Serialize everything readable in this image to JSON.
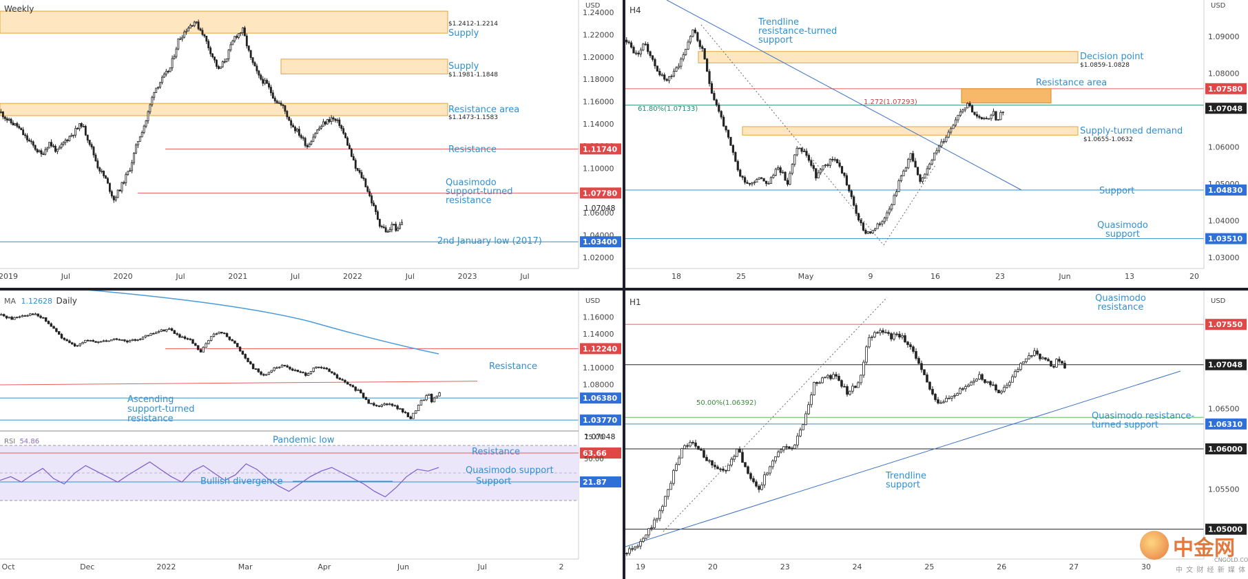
{
  "colors": {
    "bull": "#ffffff",
    "bear": "#222222",
    "zone_fill": "#fde6c0",
    "zone_border": "#e8a33a",
    "orange_zone": "#f7b869",
    "blue": "#2f8fd0",
    "red": "#e85b5b",
    "green": "#5fb85a"
  },
  "watermark": {
    "logo_cn": "中金网",
    "logo_url": "CNGOLD.COM.CN",
    "logo_sub": "中 文 财 经 新 媒 体"
  },
  "chart_data": [
    {
      "id": "weekly",
      "type": "candlestick",
      "timeframe": "Weekly",
      "currency": "USD",
      "ylim": [
        1.01,
        1.245
      ],
      "y_ticks": [
        "1.24000",
        "1.22000",
        "1.20000",
        "1.18000",
        "1.16000",
        "1.14000",
        "1.12000",
        "1.10000",
        "1.08000",
        "1.06000",
        "1.04000",
        "1.02000"
      ],
      "x_ticks": [
        "2019",
        "Jul",
        "2020",
        "Jul",
        "2021",
        "Jul",
        "2022",
        "Jul",
        "2023",
        "Jul"
      ],
      "price_path": [
        1.15,
        1.142,
        1.138,
        1.128,
        1.12,
        1.112,
        1.123,
        1.115,
        1.125,
        1.132,
        1.14,
        1.123,
        1.102,
        1.09,
        1.072,
        1.085,
        1.1,
        1.125,
        1.143,
        1.17,
        1.18,
        1.19,
        1.215,
        1.225,
        1.232,
        1.222,
        1.205,
        1.188,
        1.2,
        1.218,
        1.224,
        1.198,
        1.182,
        1.175,
        1.162,
        1.155,
        1.14,
        1.131,
        1.12,
        1.132,
        1.14,
        1.145,
        1.14,
        1.122,
        1.1,
        1.09,
        1.07,
        1.05,
        1.042,
        1.055
      ],
      "zones": [
        {
          "label": "Supply",
          "range_label": "$1.2412-1.2214",
          "top": 1.2412,
          "bottom": 1.2214,
          "x_start": 0.0
        },
        {
          "label": "Supply",
          "range_label": "$1.1981-1.1848",
          "top": 1.1981,
          "bottom": 1.1848,
          "x_start": 0.5
        },
        {
          "label": "Resistance area",
          "range_label": "$1.1473-1.1583",
          "top": 1.1583,
          "bottom": 1.1473,
          "x_start": 0.0
        }
      ],
      "levels": [
        {
          "label": "Resistance",
          "tag": "1.11740",
          "value": 1.1174,
          "color": "#e85b5b"
        },
        {
          "label": "Quasimodo support-turned resistance",
          "tag": "1.07780",
          "value": 1.0778,
          "color": "#e85b5b"
        },
        {
          "label": "2nd January low (2017)",
          "tag": "1.03400",
          "value": 1.034,
          "color": "#2f8fd0"
        }
      ],
      "last_price": "1.07048"
    },
    {
      "id": "h4",
      "type": "candlestick",
      "timeframe": "H4",
      "currency": "USD",
      "ylim": [
        1.027,
        1.098
      ],
      "y_ticks": [
        "1.09000",
        "1.08000",
        "1.07000",
        "1.06000",
        "1.05000",
        "1.04000",
        "1.03000"
      ],
      "x_ticks": [
        "18",
        "25",
        "May",
        "9",
        "16",
        "23",
        "Jun",
        "13",
        "20"
      ],
      "price_path": [
        1.089,
        1.085,
        1.088,
        1.082,
        1.078,
        1.08,
        1.085,
        1.092,
        1.086,
        1.075,
        1.068,
        1.06,
        1.052,
        1.05,
        1.052,
        1.05,
        1.055,
        1.05,
        1.06,
        1.058,
        1.052,
        1.055,
        1.057,
        1.052,
        1.044,
        1.037,
        1.037,
        1.04,
        1.045,
        1.052,
        1.058,
        1.05,
        1.056,
        1.06,
        1.064,
        1.069,
        1.072,
        1.068,
        1.067,
        1.071
      ],
      "zones": [
        {
          "label": "Decision point",
          "range_label": "$1.0859-1.0828",
          "top": 1.0859,
          "bottom": 1.0828
        },
        {
          "label": "Supply-turned demand",
          "range_label": "$1.0655-1.0632",
          "top": 1.0655,
          "bottom": 1.0632
        },
        {
          "label": "Resistance area",
          "top": 1.0758,
          "bottom": 1.0719
        }
      ],
      "fib_labels": [
        "61.80%(1.07133)",
        "1.272(1.07293)"
      ],
      "levels": [
        {
          "label": "Support",
          "tag": "1.04830",
          "value": 1.0483,
          "color": "#2f8fd0"
        },
        {
          "label": "Quasimodo support",
          "tag": "1.03510",
          "value": 1.0351,
          "color": "#2f8fd0"
        },
        {
          "tag": "1.07580",
          "value": 1.0758,
          "color": "#e85b5b"
        }
      ],
      "trendline_label": "Trendline resistance-turned support",
      "last_price": "1.07048"
    },
    {
      "id": "daily",
      "type": "candlestick",
      "timeframe": "Daily",
      "currency": "USD",
      "ma_label": "MA",
      "ma_value": "1.12628",
      "ylim": [
        1.028,
        1.175
      ],
      "y_ticks": [
        "1.16000",
        "1.14000",
        "1.12000",
        "1.10000",
        "1.08000"
      ],
      "x_ticks": [
        "Oct",
        "Dec",
        "2022",
        "Mar",
        "Apr",
        "Jun",
        "Jul",
        "2"
      ],
      "price_path": [
        1.162,
        1.158,
        1.162,
        1.164,
        1.158,
        1.146,
        1.132,
        1.126,
        1.132,
        1.13,
        1.132,
        1.134,
        1.13,
        1.134,
        1.138,
        1.143,
        1.146,
        1.136,
        1.132,
        1.118,
        1.138,
        1.142,
        1.132,
        1.116,
        1.1,
        1.09,
        1.1,
        1.102,
        1.096,
        1.092,
        1.1,
        1.098,
        1.088,
        1.08,
        1.072,
        1.058,
        1.055,
        1.058,
        1.05,
        1.04,
        1.06,
        1.072
      ],
      "levels": [
        {
          "label": "Resistance",
          "tag": "1.12240",
          "value": 1.1224,
          "color": "#e85b5b"
        },
        {
          "label": "Pandemic low",
          "tag": "1.06380",
          "value": 1.0638,
          "color": "#2f8fd0"
        },
        {
          "label": "Quasimodo support",
          "tag": "1.03770",
          "value": 1.0377,
          "color": "#2f8fd0"
        }
      ],
      "ascending_label": "Ascending support-turned resistance",
      "last_price": "1.07048",
      "rsi": {
        "label": "RSI",
        "value": "54.86",
        "ticks": [
          "75.00",
          "50.00"
        ],
        "tag_top": "63.66",
        "tag_bottom": "21.87",
        "resistance_label": "Resistance",
        "support_label": "Support",
        "divergence_label": "Bullish divergence",
        "values": [
          42,
          46,
          40,
          48,
          55,
          44,
          38,
          50,
          58,
          52,
          46,
          40,
          48,
          55,
          62,
          54,
          46,
          40,
          52,
          58,
          50,
          42,
          48,
          60,
          54,
          44,
          36,
          30,
          38,
          46,
          52,
          56,
          50,
          44,
          38,
          30,
          24,
          34,
          46,
          54,
          52,
          56
        ]
      }
    },
    {
      "id": "h1",
      "type": "candlestick",
      "timeframe": "H1",
      "currency": "USD",
      "ylim": [
        1.045,
        1.078
      ],
      "y_ticks": [
        "1.06500",
        "1.05500"
      ],
      "x_ticks": [
        "19",
        "20",
        "23",
        "24",
        "25",
        "26",
        "27",
        "30"
      ],
      "price_path": [
        1.047,
        1.048,
        1.05,
        1.052,
        1.056,
        1.06,
        1.061,
        1.059,
        1.058,
        1.057,
        1.06,
        1.057,
        1.055,
        1.058,
        1.06,
        1.06,
        1.063,
        1.068,
        1.069,
        1.069,
        1.067,
        1.068,
        1.074,
        1.075,
        1.074,
        1.074,
        1.072,
        1.069,
        1.066,
        1.066,
        1.067,
        1.068,
        1.069,
        1.068,
        1.067,
        1.069,
        1.071,
        1.072,
        1.071,
        1.07
      ],
      "fib_label": "50.00%(1.06392)",
      "levels": [
        {
          "label": "Quasimodo resistance",
          "tag": "1.07550",
          "value": 1.0755,
          "color": "#e85b5b"
        },
        {
          "tag": "1.07048",
          "value": 1.07048,
          "color": "#222222"
        },
        {
          "label": "Quasimodo resistance-turned support",
          "tag": "1.06310",
          "value": 1.0631,
          "color": "#2f8fd0"
        },
        {
          "tag": "1.06000",
          "value": 1.06,
          "color": "#222222"
        },
        {
          "tag": "1.05000",
          "value": 1.05,
          "color": "#222222"
        }
      ],
      "trendline_label": "Trendline support",
      "last_price": "1.07048"
    }
  ]
}
